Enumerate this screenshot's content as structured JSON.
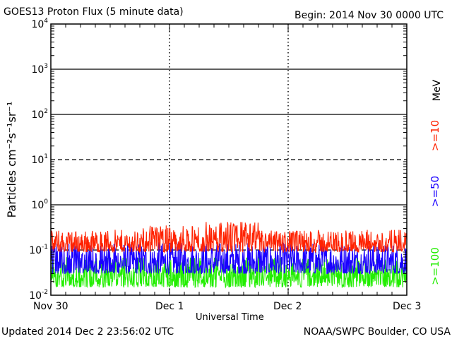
{
  "header": {
    "title": "GOES13 Proton Flux (5 minute data)",
    "begin": "Begin: 2014 Nov 30 0000 UTC"
  },
  "footer": {
    "updated": "Updated 2014 Dec  2 23:56:02 UTC",
    "source": "NOAA/SWPC Boulder, CO USA"
  },
  "chart_data": {
    "type": "line",
    "title": "GOES13 Proton Flux (5 minute data)",
    "xlabel": "Universal Time",
    "ylabel": "Particles cm⁻²s⁻¹sr⁻¹",
    "y_scale": "log",
    "ylim": [
      0.01,
      10000
    ],
    "y_ticks": [
      {
        "value": 0.01,
        "base": "10",
        "exp": "-2"
      },
      {
        "value": 0.1,
        "base": "10",
        "exp": "-1"
      },
      {
        "value": 1,
        "base": "10",
        "exp": "0"
      },
      {
        "value": 10,
        "base": "10",
        "exp": "1"
      },
      {
        "value": 100,
        "base": "10",
        "exp": "2"
      },
      {
        "value": 1000,
        "base": "10",
        "exp": "3"
      },
      {
        "value": 10000,
        "base": "10",
        "exp": "4"
      }
    ],
    "x_ticks": [
      "Nov 30",
      "Dec 1",
      "Dec 2",
      "Dec 3"
    ],
    "x_range_days": [
      0,
      3
    ],
    "solid_gridlines": [
      1,
      100,
      1000
    ],
    "dashed_gridlines": [
      0.1,
      10
    ],
    "unit_label": "MeV",
    "series": [
      {
        "name": ">=10",
        "color": "#ff2200",
        "low": 0.09,
        "high": 0.28,
        "peaks": [
          {
            "day": 1.0,
            "value": 0.35
          },
          {
            "day": 1.55,
            "value": 0.42
          }
        ]
      },
      {
        "name": ">=50",
        "color": "#1a00ff",
        "low": 0.03,
        "high": 0.15
      },
      {
        "name": ">=100",
        "color": "#22ee00",
        "low": 0.015,
        "high": 0.07
      }
    ]
  }
}
